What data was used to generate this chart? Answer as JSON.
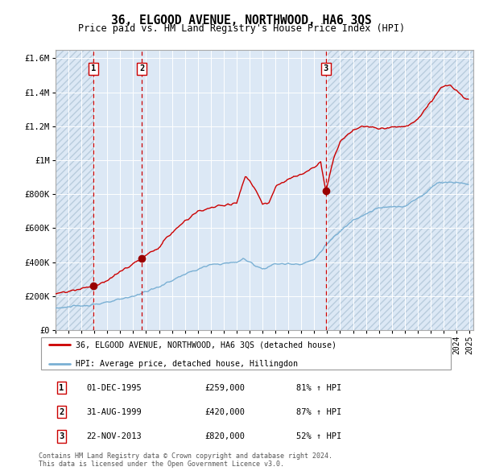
{
  "title": "36, ELGOOD AVENUE, NORTHWOOD, HA6 3QS",
  "subtitle": "Price paid vs. HM Land Registry's House Price Index (HPI)",
  "legend_line1": "36, ELGOOD AVENUE, NORTHWOOD, HA6 3QS (detached house)",
  "legend_line2": "HPI: Average price, detached house, Hillingdon",
  "red_color": "#cc0000",
  "blue_color": "#7ab0d4",
  "bg_color": "#dce8f5",
  "bg_plain": "#dce8f5",
  "hatch_color": "#b8ccdd",
  "marker_color": "#990000",
  "vline_color": "#cc0000",
  "xlim_start": 1993.0,
  "xlim_end": 2025.3,
  "ylim_min": 0,
  "ylim_max": 1650000,
  "p1_year": 1995.917,
  "p2_year": 1999.667,
  "p3_year": 2013.9,
  "purchases": [
    {
      "year": 1995.917,
      "price": 259000,
      "label": "1"
    },
    {
      "year": 1999.667,
      "price": 420000,
      "label": "2"
    },
    {
      "year": 2013.9,
      "price": 820000,
      "label": "3"
    }
  ],
  "table_rows": [
    {
      "num": "1",
      "date": "01-DEC-1995",
      "price": "£259,000",
      "hpi": "81% ↑ HPI"
    },
    {
      "num": "2",
      "date": "31-AUG-1999",
      "price": "£420,000",
      "hpi": "87% ↑ HPI"
    },
    {
      "num": "3",
      "date": "22-NOV-2013",
      "price": "£820,000",
      "hpi": "52% ↑ HPI"
    }
  ],
  "footer": "Contains HM Land Registry data © Crown copyright and database right 2024.\nThis data is licensed under the Open Government Licence v3.0.",
  "yticks": [
    0,
    200000,
    400000,
    600000,
    800000,
    1000000,
    1200000,
    1400000,
    1600000
  ],
  "ytick_labels": [
    "£0",
    "£200K",
    "£400K",
    "£600K",
    "£800K",
    "£1M",
    "£1.2M",
    "£1.4M",
    "£1.6M"
  ]
}
